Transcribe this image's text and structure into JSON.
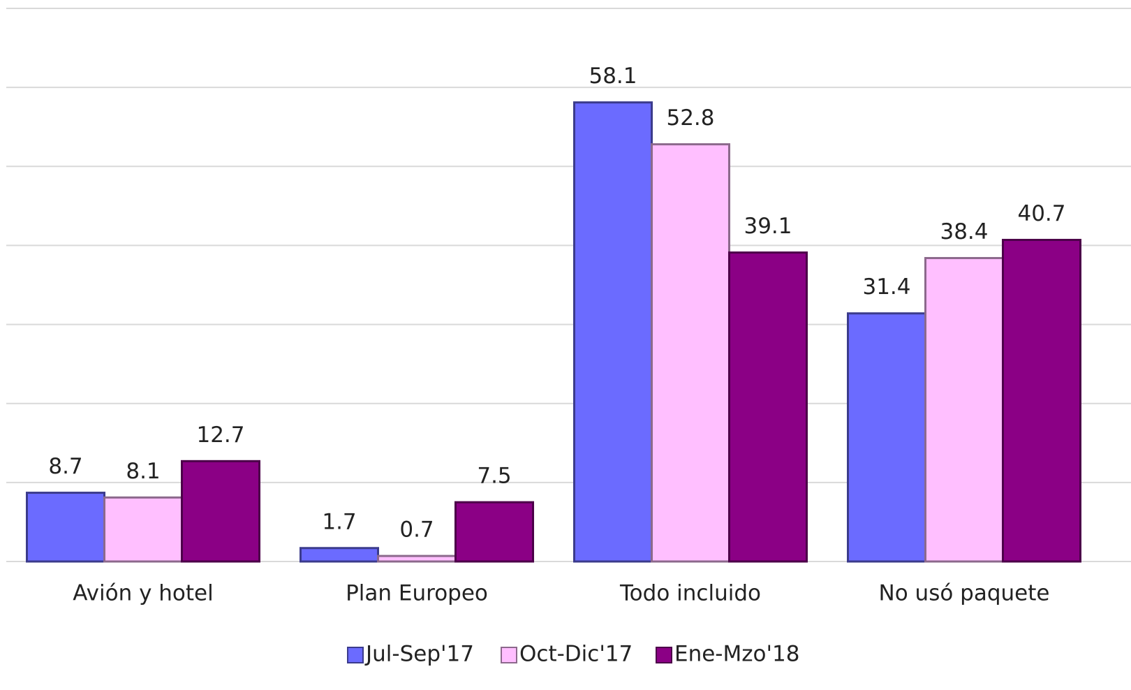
{
  "chart_data": {
    "type": "bar",
    "categories": [
      "Avión y hotel",
      "Plan Europeo",
      "Todo incluido",
      "No usó paquete"
    ],
    "series": [
      {
        "name": "Jul-Sep'17",
        "color": "#6b6bff",
        "values": [
          8.7,
          1.7,
          58.1,
          31.4
        ]
      },
      {
        "name": "Oct-Dic'17",
        "color": "#ffbfff",
        "values": [
          8.1,
          0.7,
          52.8,
          38.4
        ]
      },
      {
        "name": "Ene-Mzo'18",
        "color": "#8b0085",
        "values": [
          12.7,
          7.5,
          39.1,
          40.7
        ]
      }
    ],
    "ylim": [
      0,
      70
    ],
    "yticks": [
      0,
      10,
      20,
      30,
      40,
      50,
      60,
      70
    ],
    "grid": true,
    "legend": "bottom"
  }
}
